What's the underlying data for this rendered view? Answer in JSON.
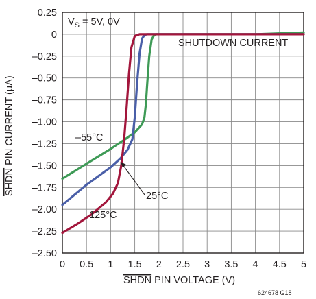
{
  "chart_data": {
    "type": "line",
    "title": "",
    "condition_label": "V",
    "condition_label_sub": "S",
    "condition_label_rest": " = 5V, 0V",
    "curve_label": "SHUTDOWN CURRENT",
    "xlabel_overline": "SHDN",
    "xlabel_rest": " PIN VOLTAGE (V)",
    "ylabel_overline": "SHDN",
    "ylabel_rest": " PIN CURRENT (μA)",
    "figure_id": "624678 G18",
    "xlim": [
      0,
      5
    ],
    "ylim": [
      -2.5,
      0.25
    ],
    "x_ticks": [
      0,
      0.5,
      1,
      1.5,
      2,
      2.5,
      3,
      3.5,
      4,
      4.5,
      5
    ],
    "x_tick_labels": [
      "0",
      "0.5",
      "1",
      "1.5",
      "2",
      "2.5",
      "3",
      "3.5",
      "4",
      "4.5",
      "5"
    ],
    "y_ticks": [
      0.25,
      0,
      -0.25,
      -0.5,
      -0.75,
      -1.0,
      -1.25,
      -1.5,
      -1.75,
      -2.0,
      -2.25,
      -2.5
    ],
    "y_tick_labels": [
      "0.25",
      "0",
      "–0.25",
      "–0.50",
      "–0.75",
      "–1.00",
      "–1.25",
      "–1.50",
      "–1.75",
      "–2.00",
      "–2.25",
      "–2.50"
    ],
    "grid": true,
    "series": [
      {
        "name": "–55°C",
        "color": "#3e9a56",
        "x": [
          0,
          0.5,
          1.0,
          1.3,
          1.5,
          1.65,
          1.7,
          1.73,
          1.76,
          1.8,
          1.85,
          1.9,
          1.95,
          2.0,
          3.0,
          4.0,
          5.0
        ],
        "y": [
          -1.65,
          -1.48,
          -1.31,
          -1.2,
          -1.12,
          -1.03,
          -0.95,
          -0.8,
          -0.55,
          -0.25,
          -0.06,
          -0.01,
          0.0,
          0.0,
          0.0,
          0.0,
          0.02
        ]
      },
      {
        "name": "25°C",
        "color": "#4a5fa8",
        "x": [
          0,
          0.5,
          1.0,
          1.2,
          1.35,
          1.45,
          1.5,
          1.55,
          1.6,
          1.65,
          1.7,
          1.75,
          5.0
        ],
        "y": [
          -1.95,
          -1.72,
          -1.52,
          -1.42,
          -1.32,
          -1.2,
          -0.95,
          -0.55,
          -0.22,
          -0.05,
          -0.01,
          0.0,
          0.0
        ]
      },
      {
        "name": "125°C",
        "color": "#a3163c",
        "x": [
          0,
          0.3,
          0.6,
          0.9,
          1.05,
          1.15,
          1.22,
          1.28,
          1.33,
          1.38,
          1.43,
          1.5,
          1.6,
          1.7,
          1.8,
          5.0
        ],
        "y": [
          -2.27,
          -2.17,
          -2.06,
          -1.92,
          -1.82,
          -1.7,
          -1.5,
          -1.2,
          -0.85,
          -0.45,
          -0.15,
          -0.02,
          0.0,
          0.0,
          0.0,
          0.0
        ]
      }
    ],
    "annotations": [
      {
        "text": "–55°C",
        "series": "–55°C"
      },
      {
        "text": "25°C",
        "series": "25°C",
        "arrow_to": [
          1.18,
          -1.38
        ]
      },
      {
        "text": "125°C",
        "series": "125°C"
      }
    ]
  }
}
